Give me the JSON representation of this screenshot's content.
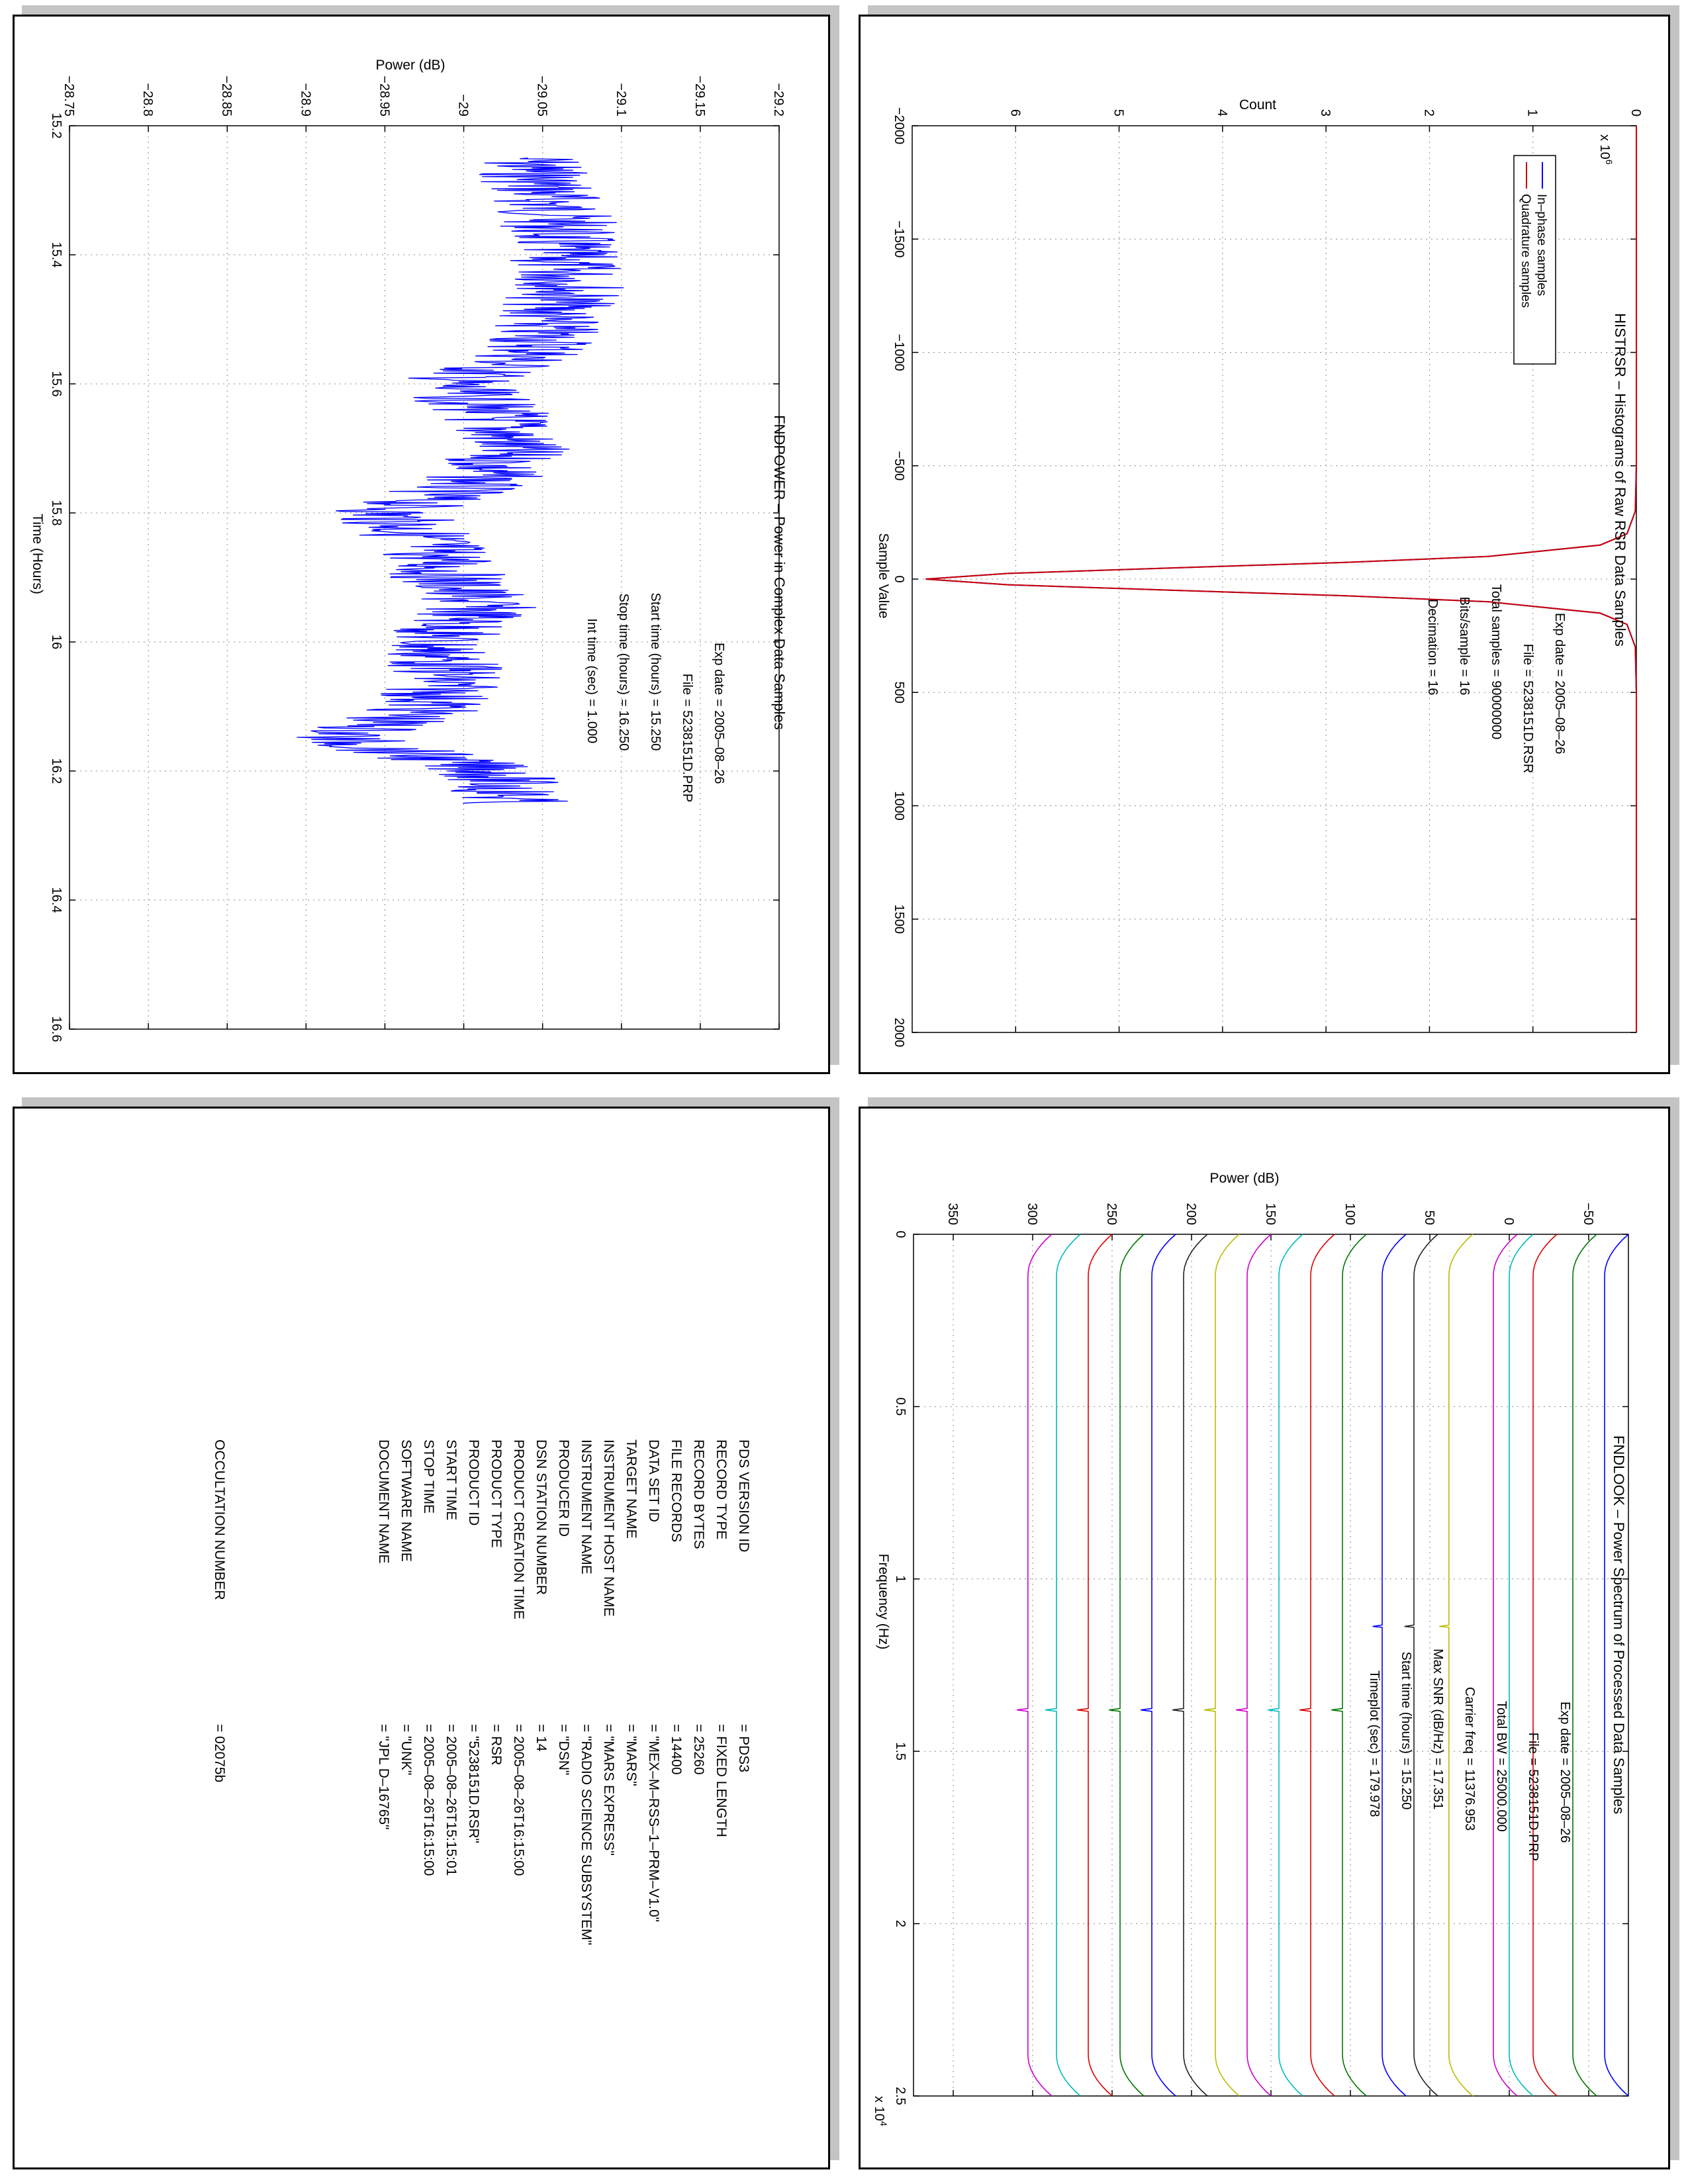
{
  "panels": {
    "histogram": {
      "title": "HISTRSR – Histograms of Raw RSR Data Samples",
      "xlabel": "Sample Value",
      "ylabel": "Count",
      "y_multiplier": "x 10",
      "y_multiplier_exp": "6",
      "legend": [
        "In–phase samples",
        "Quadrature samples"
      ],
      "info": [
        {
          "label": "Exp date",
          "value": "= 2005–08–26"
        },
        {
          "label": "File",
          "value": "= 5238151D.RSR"
        },
        {
          "label": "Total samples",
          "value": "=  90000000"
        },
        {
          "label": "Bits/sample",
          "value": "=        16"
        },
        {
          "label": "Decimation",
          "value": "=        16"
        }
      ]
    },
    "power": {
      "title": "FNDPOWER – Power in Complex Data Samples",
      "xlabel": "Time (Hours)",
      "ylabel": "Power (dB)",
      "info": [
        {
          "label": "Exp date",
          "value": "= 2005–08–26"
        },
        {
          "label": "File",
          "value": "= 5238151D.PRP"
        },
        {
          "label": "Start time (hours)",
          "value": "= 15.250"
        },
        {
          "label": "Stop time (hours)",
          "value": "= 16.250"
        },
        {
          "label": "Int time (sec)",
          "value": "=      1.000"
        }
      ]
    },
    "spectrum": {
      "title": "FNDLOOK – Power Spectrum of Processed Data Samples",
      "xlabel": "Frequency (Hz)",
      "ylabel": "Power (dB)",
      "x_multiplier": "x 10",
      "x_multiplier_exp": "4",
      "info": [
        {
          "label": "Exp date",
          "value": "= 2005–08–26"
        },
        {
          "label": "File",
          "value": "= 5238151D.PRP"
        },
        {
          "label": "Total BW",
          "value": "=     25000.000"
        },
        {
          "label": "Carrier freq",
          "value": "=    11376.953"
        },
        {
          "label": "Max SNR (dB/Hz)",
          "value": "=      17.351"
        },
        {
          "label": "Start time (hours)",
          "value": "=   15.250"
        },
        {
          "label": "Timeplot (sec)",
          "value": "=   179.978"
        }
      ]
    },
    "label": {
      "rows": [
        {
          "key": "PDS VERSION ID",
          "value": "= PDS3"
        },
        {
          "key": "RECORD TYPE",
          "value": "= FIXED LENGTH"
        },
        {
          "key": "RECORD BYTES",
          "value": "= 25260"
        },
        {
          "key": "FILE RECORDS",
          "value": "= 14400"
        },
        {
          "key": "DATA SET ID",
          "value": "= \"MEX–M–RSS–1–PRM–V1.0\""
        },
        {
          "key": "TARGET NAME",
          "value": "= \"MARS\""
        },
        {
          "key": "INSTRUMENT HOST NAME",
          "value": "= \"MARS EXPRESS\""
        },
        {
          "key": "INSTRUMENT NAME",
          "value": "= \"RADIO SCIENCE SUBSYSTEM\""
        },
        {
          "key": "PRODUCER ID",
          "value": "= \"DSN\""
        },
        {
          "key": "DSN STATION NUMBER",
          "value": "= 14"
        },
        {
          "key": "PRODUCT CREATION TIME",
          "value": "= 2005–08–26T16:15:00"
        },
        {
          "key": "PRODUCT TYPE",
          "value": "= RSR"
        },
        {
          "key": "PRODUCT ID",
          "value": "= \"5238151D.RSR\""
        },
        {
          "key": "START TIME",
          "value": "= 2005–08–26T15:15:01"
        },
        {
          "key": "STOP TIME",
          "value": "= 2005–08–26T16:15:00"
        },
        {
          "key": "SOFTWARE NAME",
          "value": "= \"UNK\""
        },
        {
          "key": "DOCUMENT NAME",
          "value": "= \"JPL D–16765\""
        },
        {
          "key": "OCCULTATION NUMBER",
          "value": "= 02075b"
        }
      ]
    }
  },
  "chart_data": [
    {
      "id": "histogram",
      "type": "line",
      "title": "HISTRSR – Histograms of Raw RSR Data Samples",
      "xlabel": "Sample Value",
      "ylabel": "Count",
      "xlim": [
        -2000,
        2000
      ],
      "ylim": [
        0,
        7
      ],
      "y_scale_factor": 1000000,
      "xticks": [
        -2000,
        -1500,
        -1000,
        -500,
        0,
        500,
        1000,
        1500,
        2000
      ],
      "yticks": [
        0,
        1,
        2,
        3,
        4,
        5,
        6
      ],
      "grid": true,
      "legend_position": "top-right",
      "orientation": "rotated 90 degrees clockwise",
      "series": [
        {
          "name": "In–phase samples",
          "color": "#0000ff",
          "x": [
            -2000,
            -500,
            -300,
            -200,
            -150,
            -100,
            -75,
            -50,
            -25,
            0,
            25,
            50,
            75,
            100,
            150,
            200,
            300,
            500,
            2000
          ],
          "y": [
            0,
            0,
            0.01,
            0.09,
            0.35,
            1.43,
            2.73,
            4.43,
            6.07,
            6.87,
            6.07,
            4.43,
            2.73,
            1.43,
            0.35,
            0.09,
            0.01,
            0,
            0
          ]
        },
        {
          "name": "Quadrature samples",
          "color": "#cc0000",
          "x": [
            -2000,
            -500,
            -300,
            -200,
            -150,
            -100,
            -75,
            -50,
            -25,
            0,
            25,
            50,
            75,
            100,
            150,
            200,
            300,
            500,
            2000
          ],
          "y": [
            0,
            0,
            0.01,
            0.09,
            0.35,
            1.43,
            2.73,
            4.43,
            6.07,
            6.87,
            6.07,
            4.43,
            2.73,
            1.43,
            0.35,
            0.09,
            0.01,
            0,
            0
          ]
        }
      ]
    },
    {
      "id": "power",
      "type": "line",
      "title": "FNDPOWER – Power in Complex Data Samples",
      "xlabel": "Time (Hours)",
      "ylabel": "Power (dB)",
      "xlim": [
        15.2,
        16.6
      ],
      "ylim": [
        -29.2,
        -28.75
      ],
      "xticks": [
        15.2,
        15.4,
        15.6,
        15.8,
        16,
        16.2,
        16.4,
        16.6
      ],
      "yticks": [
        -29.2,
        -29.15,
        -29.1,
        -29.05,
        -29,
        -28.95,
        -28.9,
        -28.85,
        -28.8,
        -28.75
      ],
      "grid": true,
      "orientation": "rotated 90 degrees clockwise",
      "series": [
        {
          "color": "#0000ff",
          "x": [
            15.25,
            15.3,
            15.35,
            15.4,
            15.45,
            15.5,
            15.55,
            15.6,
            15.65,
            15.7,
            15.75,
            15.8,
            15.85,
            15.9,
            15.95,
            16.0,
            16.05,
            16.1,
            16.15,
            16.2,
            16.25
          ],
          "y": [
            -29.04,
            -29.05,
            -29.06,
            -29.06,
            -29.07,
            -29.05,
            -29.05,
            -28.99,
            -29.02,
            -29.03,
            -29.01,
            -28.95,
            -28.98,
            -28.99,
            -29.01,
            -28.98,
            -28.99,
            -28.98,
            -28.92,
            -29.02,
            -29.03
          ]
        }
      ]
    },
    {
      "id": "spectrum",
      "type": "line",
      "title": "FNDLOOK – Power Spectrum of Processed Data Samples",
      "xlabel": "Frequency (Hz)",
      "ylabel": "Power (dB)",
      "xlim": [
        0,
        25000
      ],
      "ylim": [
        -75,
        375
      ],
      "x_scale_factor": 10000,
      "xticks": [
        0,
        0.5,
        1,
        1.5,
        2,
        2.5
      ],
      "yticks": [
        -50,
        0,
        50,
        100,
        150,
        200,
        250,
        300,
        350
      ],
      "grid": true,
      "orientation": "rotated 90 degrees clockwise",
      "series": [
        {
          "color": "#0000ff",
          "level": -60,
          "edge_drop": 15,
          "spike_x": 11376.953,
          "spike": 0
        },
        {
          "color": "#007700",
          "level": -40,
          "edge_drop": 15,
          "spike_x": 11376.953,
          "spike": 0
        },
        {
          "color": "#dd0000",
          "level": -15,
          "edge_drop": 15,
          "spike_x": 11376.953,
          "spike": 0
        },
        {
          "color": "#00bbbb",
          "level": 0,
          "edge_drop": 15,
          "spike_x": 11376.953,
          "spike": 0
        },
        {
          "color": "#cc00cc",
          "level": 10,
          "edge_drop": 15,
          "spike_x": 11376.953,
          "spike": 0
        },
        {
          "color": "#bbbb00",
          "level": 38,
          "edge_drop": 15,
          "spike_x": 11376.953,
          "spike": 6
        },
        {
          "color": "#222222",
          "level": 60,
          "edge_drop": 15,
          "spike_x": 11376.953,
          "spike": 6
        },
        {
          "color": "#0000ff",
          "level": 80,
          "edge_drop": 15,
          "spike_x": 11376.953,
          "spike": 6
        },
        {
          "color": "#007700",
          "level": 105,
          "edge_drop": 15,
          "spike_x": 13800,
          "spike": 7
        },
        {
          "color": "#dd0000",
          "level": 125,
          "edge_drop": 15,
          "spike_x": 13800,
          "spike": 7
        },
        {
          "color": "#00bbbb",
          "level": 145,
          "edge_drop": 15,
          "spike_x": 13800,
          "spike": 7
        },
        {
          "color": "#cc00cc",
          "level": 165,
          "edge_drop": 15,
          "spike_x": 13800,
          "spike": 7
        },
        {
          "color": "#bbbb00",
          "level": 185,
          "edge_drop": 15,
          "spike_x": 13800,
          "spike": 7
        },
        {
          "color": "#222222",
          "level": 205,
          "edge_drop": 15,
          "spike_x": 13800,
          "spike": 7
        },
        {
          "color": "#0000ff",
          "level": 225,
          "edge_drop": 15,
          "spike_x": 13800,
          "spike": 7
        },
        {
          "color": "#007700",
          "level": 245,
          "edge_drop": 15,
          "spike_x": 13800,
          "spike": 7
        },
        {
          "color": "#dd0000",
          "level": 265,
          "edge_drop": 15,
          "spike_x": 13800,
          "spike": 7
        },
        {
          "color": "#00bbbb",
          "level": 285,
          "edge_drop": 15,
          "spike_x": 13800,
          "spike": 7
        },
        {
          "color": "#cc00cc",
          "level": 303,
          "edge_drop": 15,
          "spike_x": 13800,
          "spike": 7
        }
      ]
    }
  ]
}
